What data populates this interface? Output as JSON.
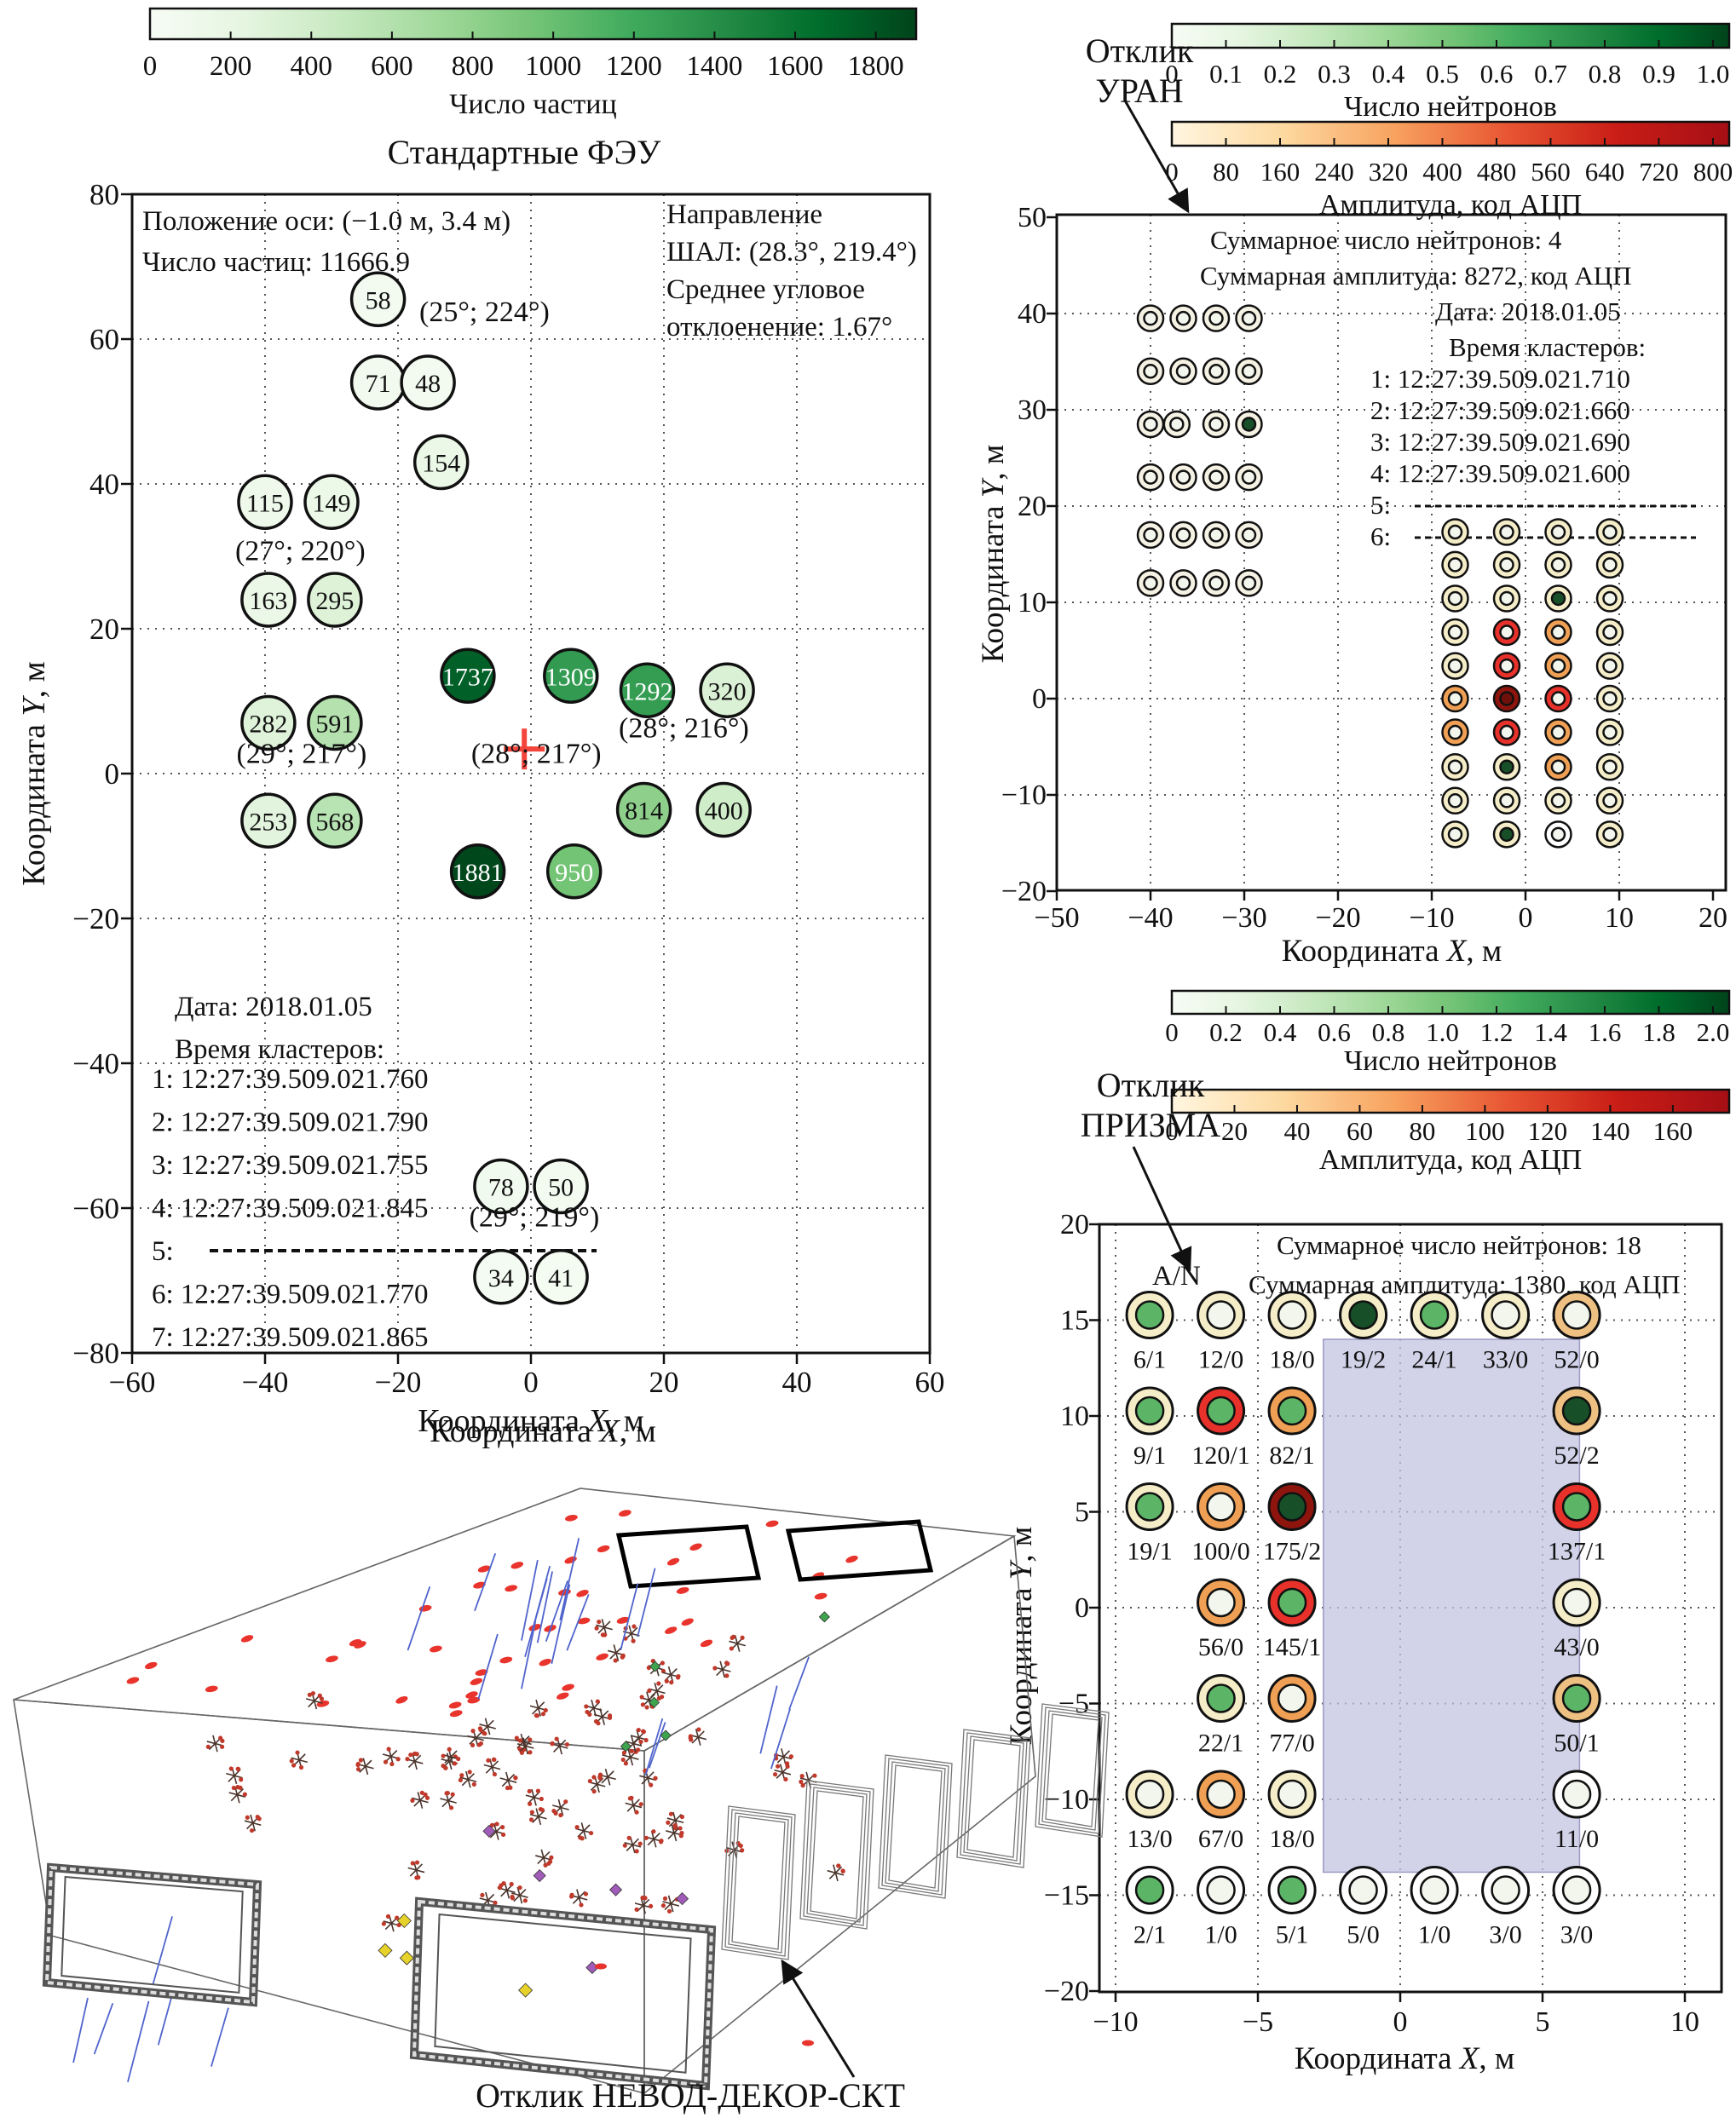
{
  "captions": {
    "uran_line1": "Отклик",
    "uran_line2": "УРАН",
    "prizma_line1": "Отклик",
    "prizma_line2": "ПРИЗМА",
    "nevod": "Отклик НЕВОД-ДЕКОР-СКТ"
  },
  "palette": {
    "ring": {
      "P": "#f4edc8",
      "C": "#f5f2e4",
      "W": "#ffffff",
      "O": "#f0a055",
      "O2": "#eec183",
      "R": "#e8312a",
      "DR": "#8e150e"
    },
    "center": {
      "W": "#f3f6ed",
      "G": "#5cb567",
      "DG": "#174f28",
      "DR2": "#70100b"
    },
    "greens": [
      "#f7fcf5",
      "#e5f5e0",
      "#c7e9c0",
      "#a1d99b",
      "#74c476",
      "#41ab5d",
      "#238b45",
      "#006d2c",
      "#00441b"
    ],
    "reds": [
      "#fff6e0",
      "#fdd9a0",
      "#f8a25f",
      "#e85633",
      "#c91d16",
      "#a50f15"
    ],
    "cross": "#f3453c",
    "shade": "#c3c3e0"
  },
  "chart_data": [
    {
      "id": "pmt",
      "type": "scatter",
      "title": "Стандартные ФЭУ",
      "colorbar": {
        "label": "Число частиц",
        "ticks": [
          "0",
          "200",
          "400",
          "600",
          "800",
          "1000",
          "1200",
          "1400",
          "1600",
          "1800"
        ],
        "vmax": 1900
      },
      "xlabel": "Координата X, м",
      "ylabel": "Координата Y, м",
      "xlim": [
        -60,
        60
      ],
      "ylim": [
        -80,
        80
      ],
      "xticks": [
        -60,
        -40,
        -20,
        0,
        20,
        40,
        60
      ],
      "xtick_labels": [
        "−60",
        "−40",
        "−20",
        "0",
        "20",
        "40",
        "60"
      ],
      "yticks": [
        80,
        60,
        40,
        20,
        0,
        -20,
        -40,
        -60,
        -80
      ],
      "ytick_labels": [
        "80",
        "60",
        "40",
        "20",
        "0",
        "−20",
        "−40",
        "−60",
        "−80"
      ],
      "info_topleft": [
        "Положение оси: (−1.0 м, 3.4 м)",
        "Число частиц: 11666.9"
      ],
      "info_topright": [
        "Направление",
        "ШАЛ: (28.3°, 219.4°)",
        "Среднее угловое",
        "отклоенение: 1.67°"
      ],
      "date": "Дата: 2018.01.05",
      "clusters_header": "Время кластеров:",
      "cluster_times": [
        "1: 12:27:39.509.021.760",
        "2: 12:27:39.509.021.790",
        "3: 12:27:39.509.021.755",
        "4: 12:27:39.509.021.845",
        "5:",
        "6: 12:27:39.509.021.770",
        "7: 12:27:39.509.021.865"
      ],
      "dash_items": [
        4
      ],
      "axis_cross": {
        "x": -1.0,
        "y": 3.4
      },
      "angle_labels": [
        {
          "t": "(25°; 224°)",
          "x": -7,
          "y": 62.5
        },
        {
          "t": "(27°; 220°)",
          "x": -34.7,
          "y": 29.5
        },
        {
          "t": "(28°; 216°)",
          "x": 23,
          "y": 5
        },
        {
          "t": "(29°; 217°)",
          "x": -34.5,
          "y": 1.5
        },
        {
          "t": "(28°; 217°)",
          "x": 0.8,
          "y": 1.5
        },
        {
          "t": "(29°; 219°)",
          "x": 0.5,
          "y": -62.5
        }
      ],
      "points": [
        {
          "x": -23,
          "y": 65.5,
          "v": 58
        },
        {
          "x": -23,
          "y": 54,
          "v": 71
        },
        {
          "x": -15.5,
          "y": 54,
          "v": 48
        },
        {
          "x": -13.5,
          "y": 43,
          "v": 154
        },
        {
          "x": -40,
          "y": 37.5,
          "v": 115
        },
        {
          "x": -30,
          "y": 37.5,
          "v": 149
        },
        {
          "x": -39.5,
          "y": 24,
          "v": 163
        },
        {
          "x": -29.5,
          "y": 24,
          "v": 295
        },
        {
          "x": -9.5,
          "y": 13.5,
          "v": 1737
        },
        {
          "x": 6,
          "y": 13.5,
          "v": 1309
        },
        {
          "x": 17.5,
          "y": 11.5,
          "v": 1292
        },
        {
          "x": 29.5,
          "y": 11.5,
          "v": 320
        },
        {
          "x": -39.5,
          "y": 7,
          "v": 282
        },
        {
          "x": -29.5,
          "y": 7,
          "v": 591
        },
        {
          "x": -39.5,
          "y": -6.5,
          "v": 253
        },
        {
          "x": -29.5,
          "y": -6.5,
          "v": 568
        },
        {
          "x": 17,
          "y": -5,
          "v": 814
        },
        {
          "x": 29,
          "y": -5,
          "v": 400
        },
        {
          "x": -8,
          "y": -13.5,
          "v": 1881
        },
        {
          "x": 6.5,
          "y": -13.5,
          "v": 950
        },
        {
          "x": -4.5,
          "y": -57,
          "v": 78
        },
        {
          "x": 4.5,
          "y": -57,
          "v": 50
        },
        {
          "x": -4.5,
          "y": -69.5,
          "v": 34
        },
        {
          "x": 4.5,
          "y": -69.5,
          "v": 41
        }
      ]
    },
    {
      "id": "uran",
      "type": "scatter",
      "colorbars": [
        {
          "label": "Число нейтронов",
          "ticks": [
            "0",
            "0.1",
            "0.2",
            "0.3",
            "0.4",
            "0.5",
            "0.6",
            "0.7",
            "0.8",
            "0.9",
            "1.0"
          ],
          "vmax": 1.03,
          "grad": "greens"
        },
        {
          "label": "Амплитуда, код АЦП",
          "ticks": [
            "0",
            "80",
            "160",
            "240",
            "320",
            "400",
            "480",
            "560",
            "640",
            "720",
            "800"
          ],
          "vmax": 824,
          "grad": "reds"
        }
      ],
      "xlabel": "Координата X, м",
      "ylabel": "Координата Y, м",
      "xticks": [
        -50,
        -40,
        -30,
        -20,
        -10,
        0,
        10,
        20
      ],
      "xtick_labels": [
        "−50",
        "−40",
        "−30",
        "−20",
        "−10",
        "0",
        "10",
        "20"
      ],
      "yticks": [
        50,
        40,
        30,
        20,
        10,
        0,
        -10,
        -20
      ],
      "ytick_labels": [
        "50",
        "40",
        "30",
        "20",
        "10",
        "0",
        "−10",
        "−20"
      ],
      "total_neutrons": "Суммарное число нейтронов: 4",
      "total_amplitude": "Суммарная амплитуда: 8272, код АЦП",
      "date": "Дата: 2018.01.05",
      "clusters_header": "Время кластеров:",
      "cluster_times": [
        "1: 12:27:39.509.021.710",
        "2: 12:27:39.509.021.660",
        "3: 12:27:39.509.021.690",
        "4: 12:27:39.509.021.600",
        "5:",
        "6:"
      ],
      "dash_items": [
        4,
        5
      ],
      "left_cluster": {
        "cols": [
          -40,
          -36.5,
          -33,
          -29.5
        ],
        "rows": [
          39.5,
          34,
          28.5,
          23,
          17,
          12
        ],
        "special_row": {
          "index": 2,
          "cols": [
            -40,
            -37.2,
            -33,
            -29.5
          ],
          "centers": [
            "W",
            "W",
            "W",
            "DG"
          ]
        }
      },
      "right_cluster": {
        "cols": [
          -7.5,
          -2,
          3.5,
          9
        ],
        "rows": [
          {
            "y": 17.3,
            "cells": [
              [
                "P",
                "W"
              ],
              [
                "P",
                "W"
              ],
              [
                "P",
                "W"
              ],
              [
                "P",
                "W"
              ]
            ]
          },
          {
            "y": 13.9,
            "cells": [
              [
                "P",
                "W"
              ],
              [
                "P",
                "W"
              ],
              [
                "P",
                "W"
              ],
              [
                "P",
                "W"
              ]
            ]
          },
          {
            "y": 10.4,
            "cells": [
              [
                "P",
                "W"
              ],
              [
                "P",
                "W"
              ],
              [
                "P",
                "DG"
              ],
              [
                "P",
                "W"
              ]
            ]
          },
          {
            "y": 6.9,
            "cells": [
              [
                "P",
                "W"
              ],
              [
                "R",
                "W"
              ],
              [
                "O",
                "W"
              ],
              [
                "P",
                "W"
              ]
            ]
          },
          {
            "y": 3.4,
            "cells": [
              [
                "P",
                "W"
              ],
              [
                "R",
                "W"
              ],
              [
                "O",
                "W"
              ],
              [
                "P",
                "W"
              ]
            ]
          },
          {
            "y": 0,
            "cells": [
              [
                "O",
                "W"
              ],
              [
                "DR",
                "DR2"
              ],
              [
                "R",
                "W"
              ],
              [
                "P",
                "W"
              ]
            ]
          },
          {
            "y": -3.5,
            "cells": [
              [
                "O",
                "W"
              ],
              [
                "R",
                "W"
              ],
              [
                "O",
                "W"
              ],
              [
                "P",
                "W"
              ]
            ]
          },
          {
            "y": -7.1,
            "cells": [
              [
                "P",
                "W"
              ],
              [
                "P",
                "DG"
              ],
              [
                "O",
                "W"
              ],
              [
                "P",
                "W"
              ]
            ]
          },
          {
            "y": -10.6,
            "cells": [
              [
                "P",
                "W"
              ],
              [
                "P",
                "W"
              ],
              [
                "P",
                "W"
              ],
              [
                "P",
                "W"
              ]
            ]
          },
          {
            "y": -14.1,
            "cells": [
              [
                "P",
                "W"
              ],
              [
                "P",
                "DG"
              ],
              [
                "W",
                "W"
              ],
              [
                "P",
                "W"
              ]
            ]
          }
        ]
      }
    },
    {
      "id": "prizma",
      "type": "scatter",
      "colorbars": [
        {
          "label": "Число нейтронов",
          "ticks": [
            "0",
            "0.2",
            "0.4",
            "0.6",
            "0.8",
            "1.0",
            "1.2",
            "1.4",
            "1.6",
            "1.8",
            "2.0"
          ],
          "vmax": 2.06,
          "grad": "greens"
        },
        {
          "label": "Амплитуда, код АЦП",
          "ticks": [
            "0",
            "20",
            "40",
            "60",
            "80",
            "100",
            "120",
            "140",
            "160"
          ],
          "vmax": 178,
          "grad": "reds"
        }
      ],
      "xlabel": "Координата X, м",
      "ylabel": "Координата Y, м",
      "xticks": [
        -10,
        -5,
        0,
        5,
        10
      ],
      "xtick_labels": [
        "−10",
        "−5",
        "0",
        "5",
        "10"
      ],
      "yticks": [
        20,
        15,
        10,
        5,
        0,
        -5,
        -10,
        -15,
        -20
      ],
      "ytick_labels": [
        "20",
        "15",
        "10",
        "5",
        "0",
        "−5",
        "−10",
        "−15",
        "−20"
      ],
      "total_neutrons": "Суммарное число нейтронов: 18",
      "total_amplitude": "Суммарная амплитуда: 1380, код АЦП",
      "legend": "A/N",
      "shade_region": {
        "x1": -2.7,
        "x2": 6.3,
        "y1": -13.8,
        "y2": 14.0
      },
      "rows": [
        {
          "y": 15,
          "cells": [
            {
              "x": -8.8,
              "ring": "P",
              "center": "G",
              "label": "6/1"
            },
            {
              "x": -6.3,
              "ring": "P",
              "center": "W",
              "label": "12/0"
            },
            {
              "x": -3.8,
              "ring": "P",
              "center": "W",
              "label": "18/0"
            },
            {
              "x": -1.3,
              "ring": "P",
              "center": "DG",
              "label": "19/2"
            },
            {
              "x": 1.2,
              "ring": "P",
              "center": "G",
              "label": "24/1"
            },
            {
              "x": 3.7,
              "ring": "P",
              "center": "W",
              "label": "33/0"
            },
            {
              "x": 6.2,
              "ring": "O2",
              "center": "W",
              "label": "52/0"
            }
          ]
        },
        {
          "y": 10,
          "cells": [
            {
              "x": -8.8,
              "ring": "P",
              "center": "G",
              "label": "9/1"
            },
            {
              "x": -6.3,
              "ring": "R",
              "center": "G",
              "label": "120/1"
            },
            {
              "x": -3.8,
              "ring": "O",
              "center": "G",
              "label": "82/1"
            },
            {
              "x": 6.2,
              "ring": "O2",
              "center": "DG",
              "label": "52/2"
            }
          ]
        },
        {
          "y": 5,
          "cells": [
            {
              "x": -8.8,
              "ring": "P",
              "center": "G",
              "label": "19/1"
            },
            {
              "x": -6.3,
              "ring": "O",
              "center": "W",
              "label": "100/0"
            },
            {
              "x": -3.8,
              "ring": "DR",
              "center": "DG",
              "label": "175/2"
            },
            {
              "x": 6.2,
              "ring": "R",
              "center": "G",
              "label": "137/1"
            }
          ]
        },
        {
          "y": 0,
          "cells": [
            {
              "x": -6.3,
              "ring": "O",
              "center": "W",
              "label": "56/0"
            },
            {
              "x": -3.8,
              "ring": "R",
              "center": "G",
              "label": "145/1"
            },
            {
              "x": 6.2,
              "ring": "P",
              "center": "W",
              "label": "43/0"
            }
          ]
        },
        {
          "y": -5,
          "cells": [
            {
              "x": -6.3,
              "ring": "P",
              "center": "G",
              "label": "22/1"
            },
            {
              "x": -3.8,
              "ring": "O",
              "center": "W",
              "label": "77/0"
            },
            {
              "x": 6.2,
              "ring": "O2",
              "center": "G",
              "label": "50/1"
            }
          ]
        },
        {
          "y": -10,
          "cells": [
            {
              "x": -8.8,
              "ring": "P",
              "center": "W",
              "label": "13/0"
            },
            {
              "x": -6.3,
              "ring": "O",
              "center": "W",
              "label": "67/0"
            },
            {
              "x": -3.8,
              "ring": "P",
              "center": "W",
              "label": "18/0"
            },
            {
              "x": 6.2,
              "ring": "W",
              "center": "W",
              "label": "11/0"
            }
          ]
        },
        {
          "y": -15,
          "cells": [
            {
              "x": -8.8,
              "ring": "W",
              "center": "G",
              "label": "2/1"
            },
            {
              "x": -6.3,
              "ring": "W",
              "center": "W",
              "label": "1/0"
            },
            {
              "x": -3.8,
              "ring": "W",
              "center": "G",
              "label": "5/1"
            },
            {
              "x": -1.3,
              "ring": "W",
              "center": "W",
              "label": "5/0"
            },
            {
              "x": 1.2,
              "ring": "W",
              "center": "W",
              "label": "1/0"
            },
            {
              "x": 3.7,
              "ring": "W",
              "center": "W",
              "label": "3/0"
            },
            {
              "x": 6.2,
              "ring": "W",
              "center": "W",
              "label": "3/0"
            }
          ]
        }
      ]
    },
    {
      "id": "nevod3d",
      "type": "scatter",
      "top_label": "Координата X, м",
      "marker_colors": {
        "surface_hit": "#e8342c",
        "track_hit_dot": "#c0392b",
        "track_hit_line": "#4a342c",
        "muon_track": "#5064cc",
        "green_hit": "#3fa44e",
        "yellow_hit": "#e6d22b",
        "purple_hit": "#a05cb8"
      }
    }
  ]
}
